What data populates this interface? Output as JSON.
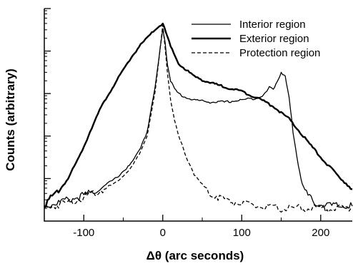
{
  "chart_data": {
    "type": "line",
    "title": "",
    "xlabel": "Δθ (arc seconds)",
    "ylabel": "Counts (arbitrary)",
    "xlim": [
      -150,
      240
    ],
    "ylim": [
      0,
      1
    ],
    "x_ticks": [
      -100,
      0,
      100,
      200
    ],
    "x_tick_labels": [
      "-100",
      "0",
      "100",
      "200"
    ],
    "y_ticks": [
      0.2,
      0.4,
      0.6,
      0.8,
      1.0
    ],
    "y_tick_labels_shown": false,
    "grid": false,
    "legend_position": "top-right",
    "series": [
      {
        "name": "Interior region",
        "style": "solid-thin",
        "x": [
          -150,
          -140,
          -120,
          -100,
          -80,
          -60,
          -40,
          -30,
          -20,
          -10,
          -5,
          0,
          3,
          6,
          10,
          15,
          20,
          30,
          40,
          60,
          80,
          100,
          120,
          130,
          135,
          140,
          145,
          150,
          155,
          160,
          165,
          170,
          175,
          180,
          190,
          200,
          220,
          240
        ],
        "y": [
          0.07,
          0.08,
          0.1,
          0.12,
          0.15,
          0.2,
          0.27,
          0.33,
          0.42,
          0.62,
          0.76,
          0.91,
          0.84,
          0.74,
          0.66,
          0.62,
          0.6,
          0.58,
          0.57,
          0.56,
          0.56,
          0.57,
          0.58,
          0.6,
          0.63,
          0.62,
          0.66,
          0.7,
          0.68,
          0.58,
          0.42,
          0.3,
          0.2,
          0.14,
          0.09,
          0.08,
          0.07,
          0.07
        ]
      },
      {
        "name": "Exterior region",
        "style": "solid-thick",
        "x": [
          -150,
          -140,
          -130,
          -120,
          -110,
          -100,
          -90,
          -80,
          -70,
          -60,
          -50,
          -40,
          -30,
          -20,
          -10,
          0,
          10,
          20,
          40,
          60,
          80,
          100,
          120,
          140,
          160,
          180,
          200,
          220,
          240
        ],
        "y": [
          0.08,
          0.11,
          0.15,
          0.2,
          0.27,
          0.35,
          0.44,
          0.52,
          0.59,
          0.65,
          0.71,
          0.77,
          0.82,
          0.86,
          0.9,
          0.93,
          0.82,
          0.74,
          0.68,
          0.65,
          0.63,
          0.61,
          0.58,
          0.54,
          0.48,
          0.39,
          0.3,
          0.22,
          0.15
        ]
      },
      {
        "name": "Protection region",
        "style": "dashed",
        "x": [
          -150,
          -140,
          -120,
          -100,
          -80,
          -60,
          -40,
          -30,
          -20,
          -10,
          -5,
          0,
          3,
          6,
          10,
          15,
          20,
          30,
          40,
          50,
          60,
          80,
          100,
          120,
          140,
          160,
          180,
          200,
          220,
          240
        ],
        "y": [
          0.06,
          0.07,
          0.09,
          0.11,
          0.14,
          0.18,
          0.25,
          0.31,
          0.4,
          0.6,
          0.75,
          0.92,
          0.82,
          0.7,
          0.57,
          0.47,
          0.4,
          0.3,
          0.22,
          0.17,
          0.13,
          0.1,
          0.08,
          0.07,
          0.06,
          0.06,
          0.06,
          0.06,
          0.06,
          0.06
        ]
      }
    ]
  }
}
